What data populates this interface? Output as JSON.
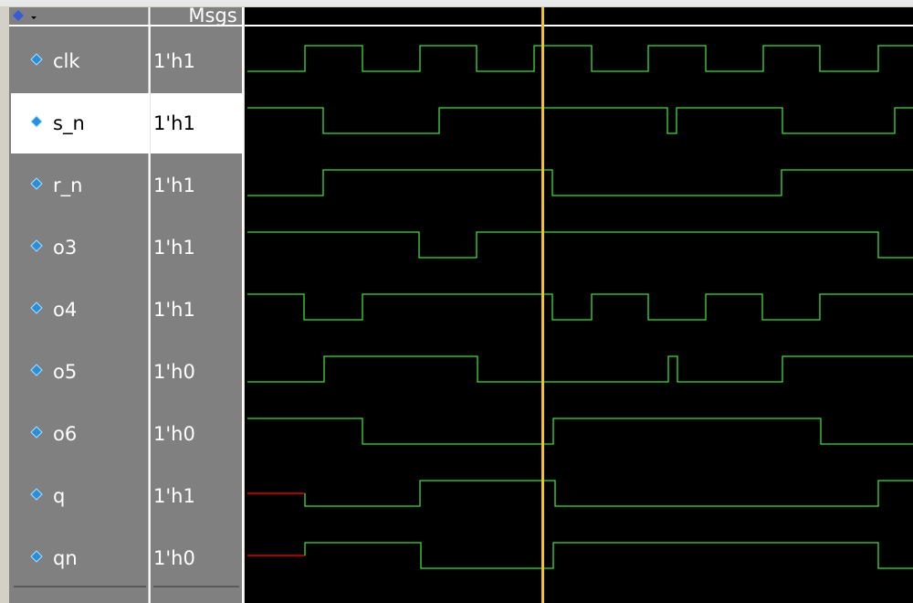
{
  "header": {
    "label": "Msgs"
  },
  "signals": [
    {
      "name": "clk",
      "value": "1'h1"
    },
    {
      "name": "s_n",
      "value": "1'h1"
    },
    {
      "name": "r_n",
      "value": "1'h1"
    },
    {
      "name": "o3",
      "value": "1'h1"
    },
    {
      "name": "o4",
      "value": "1'h1"
    },
    {
      "name": "o5",
      "value": "1'h0"
    },
    {
      "name": "o6",
      "value": "1'h0"
    },
    {
      "name": "q",
      "value": "1'h1"
    },
    {
      "name": "qn",
      "value": "1'h0"
    }
  ]
}
